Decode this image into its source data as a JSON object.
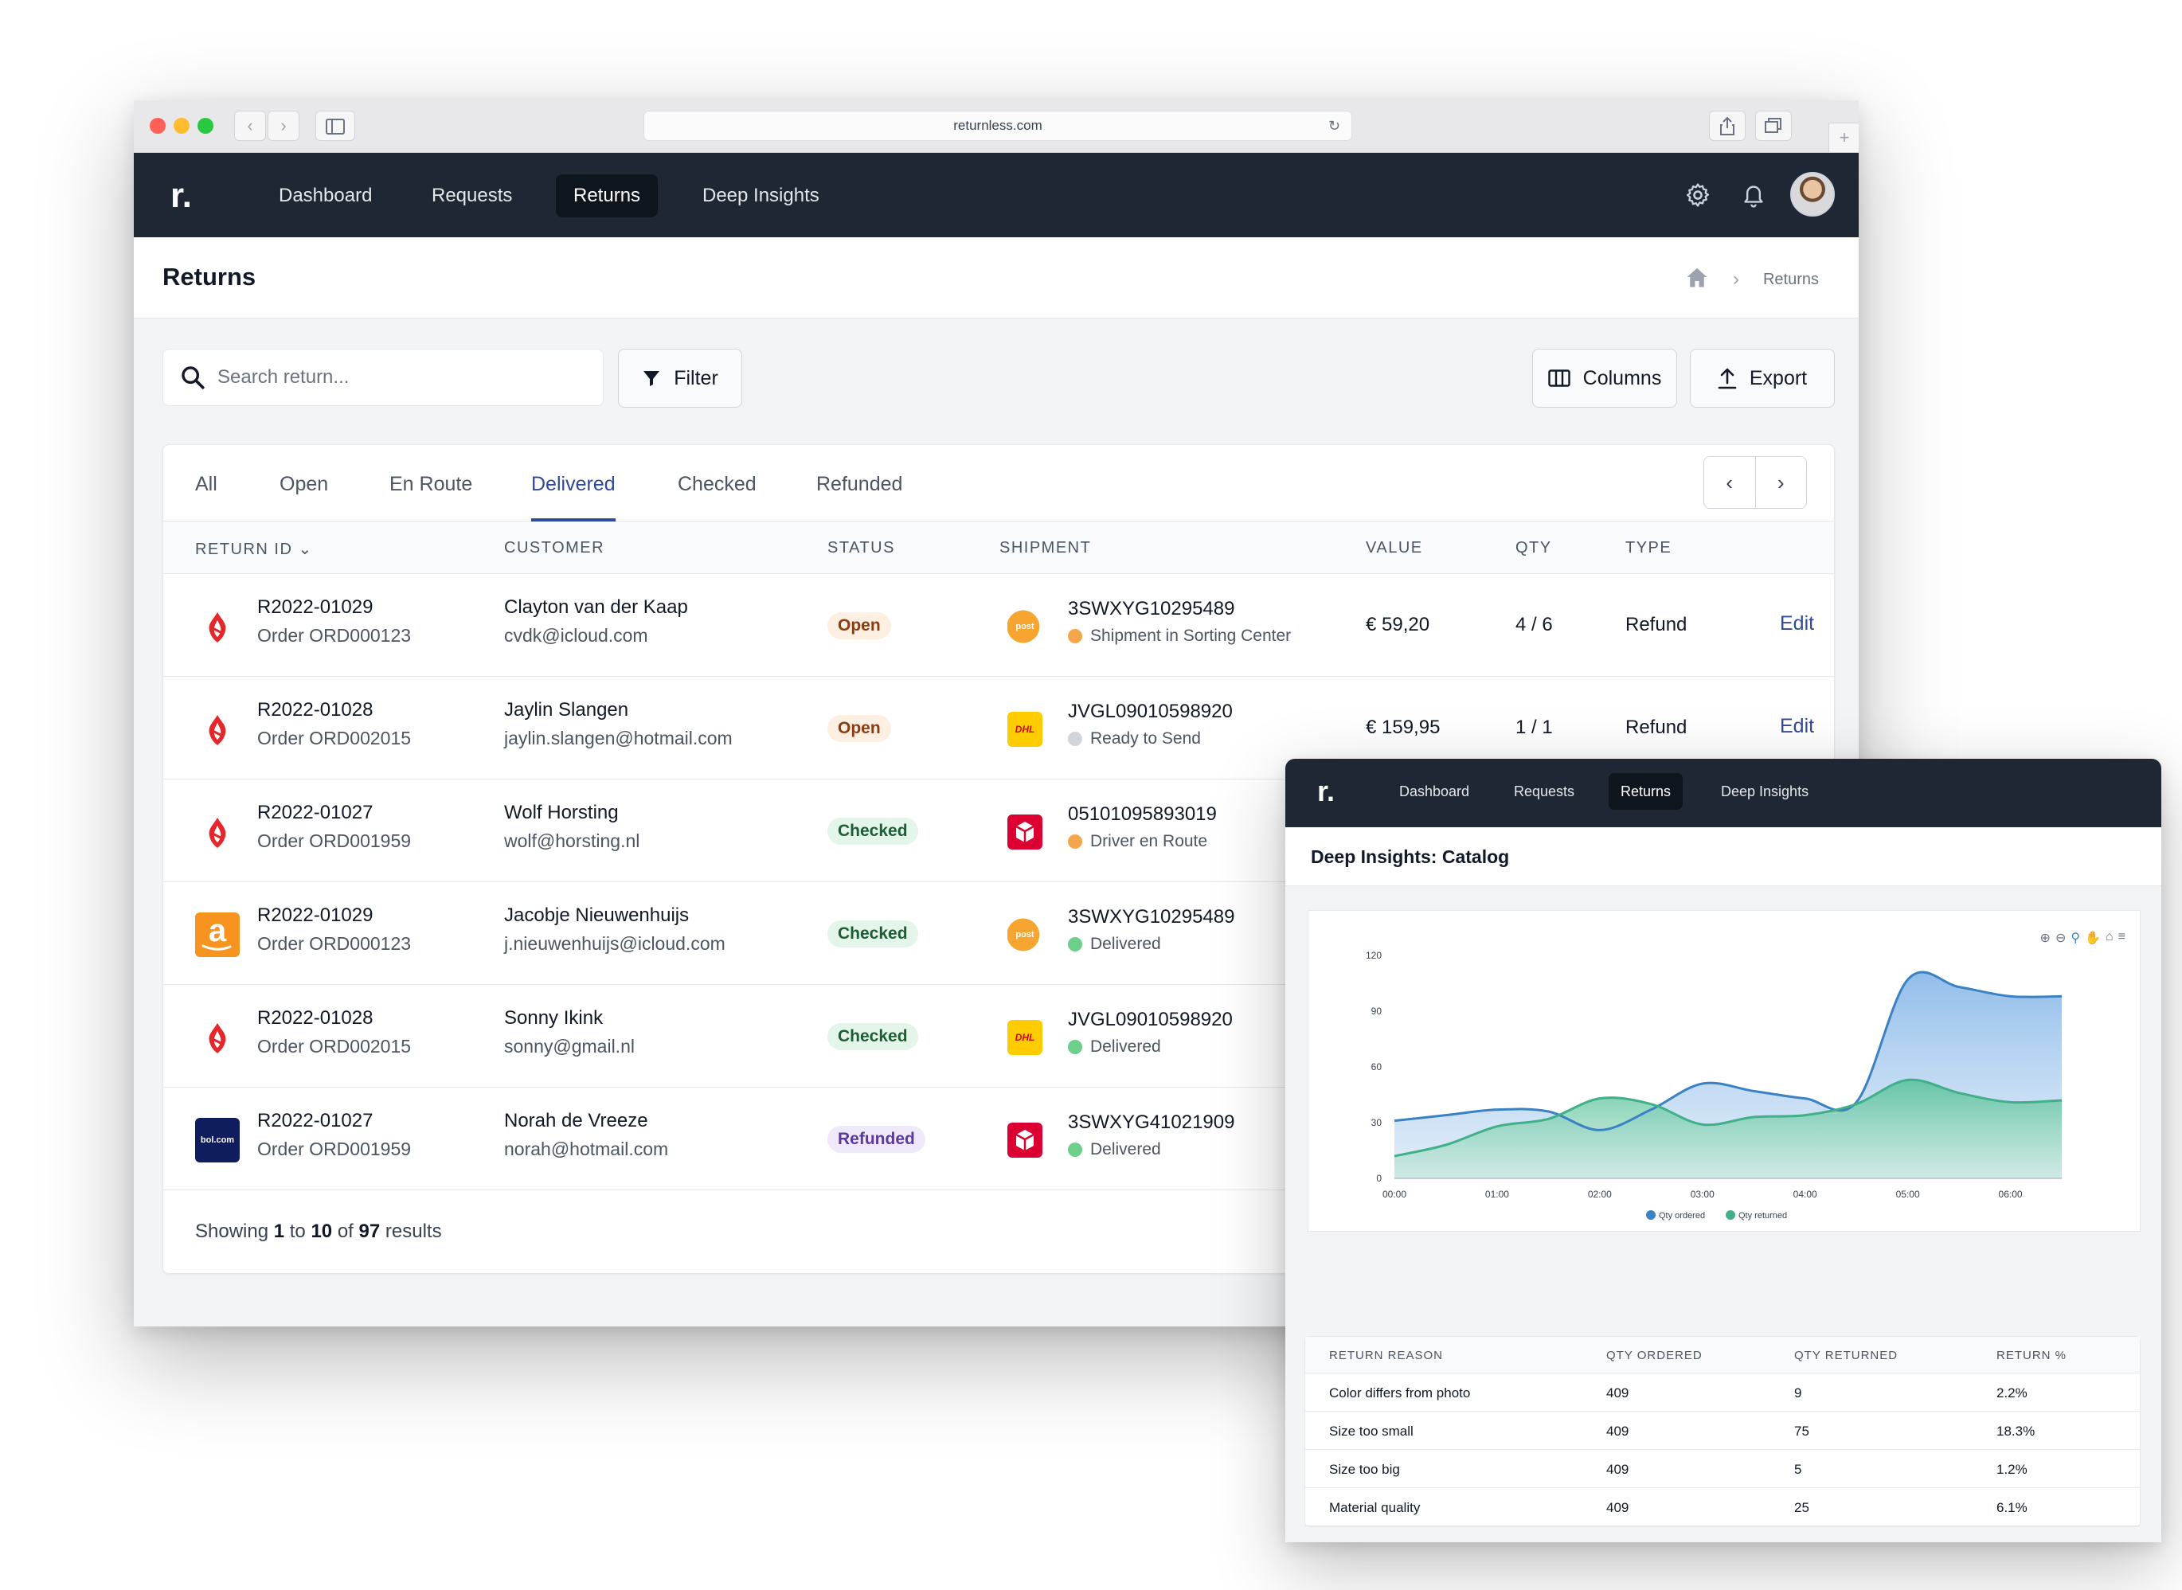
{
  "browser": {
    "url": "returnless.com"
  },
  "nav": {
    "logo": "r.",
    "items": [
      "Dashboard",
      "Requests",
      "Returns",
      "Deep Insights"
    ],
    "active": "Returns"
  },
  "page": {
    "title": "Returns",
    "breadcrumb_current": "Returns"
  },
  "toolbar": {
    "search_placeholder": "Search return...",
    "filter_label": "Filter",
    "columns_label": "Columns",
    "export_label": "Export"
  },
  "tabs": [
    "All",
    "Open",
    "En Route",
    "Delivered",
    "Checked",
    "Refunded"
  ],
  "active_tab": "Delivered",
  "table": {
    "headers": {
      "return_id": "RETURN ID",
      "customer": "CUSTOMER",
      "status": "STATUS",
      "shipment": "SHIPMENT",
      "value": "VALUE",
      "qty": "QTY",
      "type": "TYPE"
    },
    "rows": [
      {
        "id": "R2022-01029",
        "order": "Order ORD000123",
        "name": "Clayton van der Kaap",
        "email": "cvdk@icloud.com",
        "status": "Open",
        "status_kind": "open",
        "tracking": "3SWXYG10295489",
        "ship_status": "Shipment in Sorting Center",
        "ship_color": "#f5a64a",
        "value": "€ 59,20",
        "qty": "4 / 6",
        "type": "Refund",
        "action": "Edit",
        "brand": "lightspeed",
        "carrier": "postnl"
      },
      {
        "id": "R2022-01028",
        "order": "Order ORD002015",
        "name": "Jaylin Slangen",
        "email": "jaylin.slangen@hotmail.com",
        "status": "Open",
        "status_kind": "open",
        "tracking": "JVGL09010598920",
        "ship_status": "Ready to Send",
        "ship_color": "#d1d5db",
        "value": "€ 159,95",
        "qty": "1 / 1",
        "type": "Refund",
        "action": "Edit",
        "brand": "lightspeed",
        "carrier": "dhl"
      },
      {
        "id": "R2022-01027",
        "order": "Order ORD001959",
        "name": "Wolf Horsting",
        "email": "wolf@horsting.nl",
        "status": "Checked",
        "status_kind": "checked",
        "tracking": "05101095893019",
        "ship_status": "Driver en Route",
        "ship_color": "#f5a64a",
        "brand": "lightspeed",
        "carrier": "dpd"
      },
      {
        "id": "R2022-01029",
        "order": "Order ORD000123",
        "name": "Jacobje Nieuwenhuijs",
        "email": "j.nieuwenhuijs@icloud.com",
        "status": "Checked",
        "status_kind": "checked",
        "tracking": "3SWXYG10295489",
        "ship_status": "Delivered",
        "ship_color": "#6ccf8a",
        "brand": "amazon",
        "carrier": "postnl"
      },
      {
        "id": "R2022-01028",
        "order": "Order ORD002015",
        "name": "Sonny Ikink",
        "email": "sonny@gmail.nl",
        "status": "Checked",
        "status_kind": "checked",
        "tracking": "JVGL09010598920",
        "ship_status": "Delivered",
        "ship_color": "#6ccf8a",
        "brand": "lightspeed",
        "carrier": "dhl"
      },
      {
        "id": "R2022-01027",
        "order": "Order ORD001959",
        "name": "Norah de Vreeze",
        "email": "norah@hotmail.com",
        "status": "Refunded",
        "status_kind": "refunded",
        "tracking": "3SWXYG41021909",
        "ship_status": "Delivered",
        "ship_color": "#6ccf8a",
        "brand": "bolcom",
        "carrier": "dpd"
      }
    ],
    "footer": {
      "prefix": "Showing",
      "from": "1",
      "to_word": "to",
      "to": "10",
      "of_word": "of",
      "total": "97",
      "suffix": "results"
    }
  },
  "brand_text": {
    "amazon": "a",
    "bolcom": "bol.com",
    "postnl": "post",
    "dhl": "DHL"
  },
  "overlay": {
    "nav_items": [
      "Dashboard",
      "Requests",
      "Returns",
      "Deep Insights"
    ],
    "active": "Returns",
    "title": "Deep Insights: Catalog",
    "table": {
      "headers": [
        "RETURN REASON",
        "QTY ORDERED",
        "QTY RETURNED",
        "RETURN %"
      ],
      "rows": [
        [
          "Color differs from photo",
          "409",
          "9",
          "2.2%"
        ],
        [
          "Size too small",
          "409",
          "75",
          "18.3%"
        ],
        [
          "Size too big",
          "409",
          "5",
          "1.2%"
        ],
        [
          "Material quality",
          "409",
          "25",
          "6.1%"
        ]
      ]
    }
  },
  "chart_data": {
    "type": "area",
    "x": [
      "00:00",
      "00:30",
      "01:00",
      "01:30",
      "02:00",
      "02:30",
      "03:00",
      "03:30",
      "04:00",
      "04:30",
      "05:00",
      "05:30",
      "06:00",
      "06:30"
    ],
    "series": [
      {
        "name": "Qty ordered",
        "color": "#3b82c4",
        "values": [
          31,
          34,
          37,
          36,
          26,
          37,
          51,
          47,
          43,
          41,
          107,
          103,
          98,
          98
        ]
      },
      {
        "name": "Qty returned",
        "color": "#3fb088",
        "values": [
          12,
          18,
          28,
          32,
          43,
          40,
          29,
          33,
          34,
          40,
          53,
          46,
          41,
          42
        ]
      }
    ],
    "xticks": [
      "00:00",
      "01:00",
      "02:00",
      "03:00",
      "04:00",
      "05:00",
      "06:00"
    ],
    "yticks": [
      0,
      30,
      60,
      90,
      120
    ],
    "ylim": [
      0,
      120
    ],
    "legend": "bottom",
    "grid": false
  }
}
